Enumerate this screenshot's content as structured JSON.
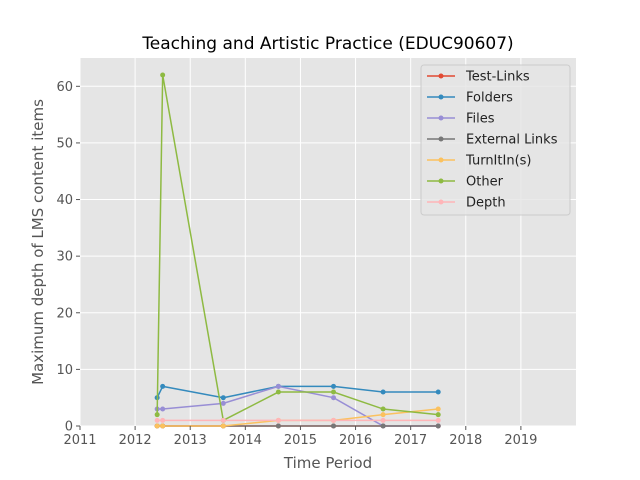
{
  "chart_data": {
    "type": "line",
    "title": "Teaching and Artistic Practice (EDUC90607)",
    "xlabel": "Time Period",
    "ylabel": "Maximum depth of LMS content items",
    "xlim": [
      2011,
      2020
    ],
    "ylim": [
      0,
      65
    ],
    "xticks": [
      2011,
      2012,
      2013,
      2014,
      2015,
      2016,
      2017,
      2018,
      2019
    ],
    "yticks": [
      0,
      10,
      20,
      30,
      40,
      50,
      60
    ],
    "grid": true,
    "legend_position": "top-right",
    "series": [
      {
        "name": "Test-Links",
        "color": "#e24a33",
        "points": [
          [
            2012.4,
            0
          ],
          [
            2012.5,
            0
          ],
          [
            2013.6,
            0
          ],
          [
            2014.6,
            0
          ],
          [
            2015.6,
            0
          ],
          [
            2016.5,
            0
          ],
          [
            2017.5,
            0
          ]
        ]
      },
      {
        "name": "Folders",
        "color": "#348abd",
        "points": [
          [
            2012.4,
            5
          ],
          [
            2012.5,
            7
          ],
          [
            2013.6,
            5
          ],
          [
            2014.6,
            7
          ],
          [
            2015.6,
            7
          ],
          [
            2016.5,
            6
          ],
          [
            2017.5,
            6
          ]
        ]
      },
      {
        "name": "Files",
        "color": "#988ed5",
        "points": [
          [
            2012.4,
            3
          ],
          [
            2012.5,
            3
          ],
          [
            2013.6,
            4
          ],
          [
            2014.6,
            7
          ],
          [
            2015.6,
            5
          ],
          [
            2016.5,
            0
          ],
          [
            2017.5,
            0
          ]
        ]
      },
      {
        "name": "External Links",
        "color": "#777777",
        "points": [
          [
            2012.4,
            0
          ],
          [
            2012.5,
            0
          ],
          [
            2013.6,
            0
          ],
          [
            2014.6,
            0
          ],
          [
            2015.6,
            0
          ],
          [
            2016.5,
            0
          ],
          [
            2017.5,
            0
          ]
        ]
      },
      {
        "name": "TurnItIn(s)",
        "color": "#fbc15e",
        "points": [
          [
            2012.4,
            0
          ],
          [
            2012.5,
            0
          ],
          [
            2013.6,
            0
          ],
          [
            2014.6,
            1
          ],
          [
            2015.6,
            1
          ],
          [
            2016.5,
            2
          ],
          [
            2017.5,
            3
          ]
        ]
      },
      {
        "name": "Other",
        "color": "#8eba42",
        "points": [
          [
            2012.4,
            2
          ],
          [
            2012.5,
            62
          ],
          [
            2013.6,
            1
          ],
          [
            2014.6,
            6
          ],
          [
            2015.6,
            6
          ],
          [
            2016.5,
            3
          ],
          [
            2017.5,
            2
          ]
        ]
      },
      {
        "name": "Depth",
        "color": "#ffb5b8",
        "points": [
          [
            2012.4,
            1
          ],
          [
            2012.5,
            1
          ],
          [
            2013.6,
            1
          ],
          [
            2014.6,
            1
          ],
          [
            2015.6,
            1
          ],
          [
            2016.5,
            1
          ],
          [
            2017.5,
            1
          ]
        ]
      }
    ]
  }
}
